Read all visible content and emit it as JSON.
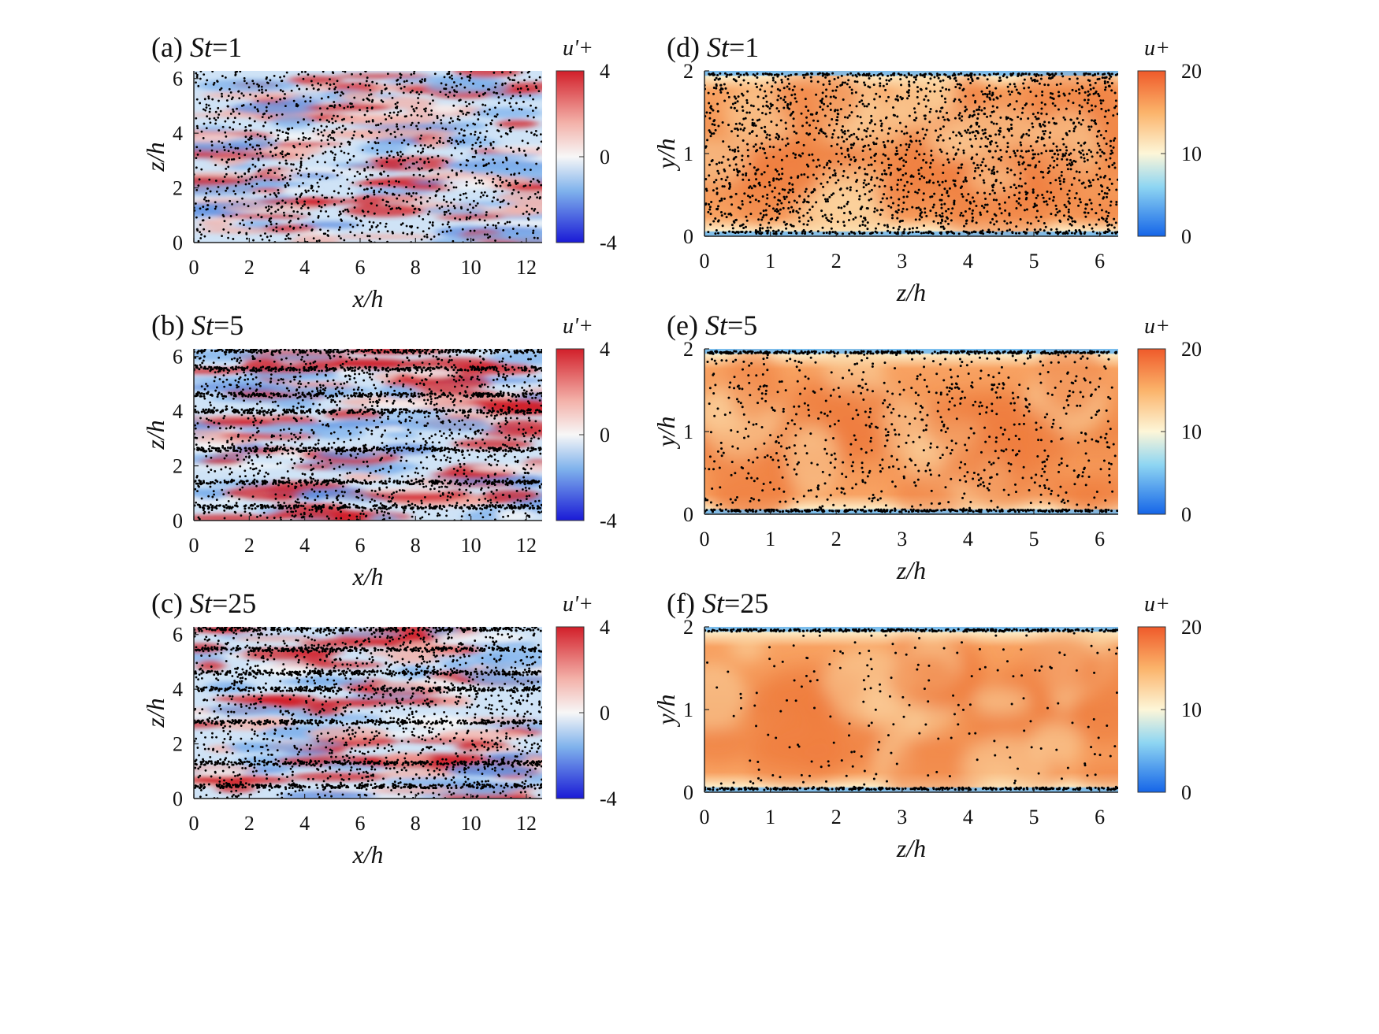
{
  "figure": {
    "description_colormap_left": "diverging blue-white-red",
    "description_colormap_right": "blue-white-orange"
  },
  "colors": {
    "neg": "#1a1ad6",
    "negmid": "#7fb2ec",
    "zero": "#f7f7f7",
    "posmid": "#f3b0a8",
    "pos": "#d21f2a",
    "ulow": "#1565e8",
    "umidlow": "#8fd6f2",
    "umid": "#fdf6d8",
    "umidhigh": "#fbb36a",
    "uhigh": "#ef5a2a",
    "particle": "#000000"
  },
  "chart_data": [
    {
      "id": "a",
      "type": "heatmap",
      "label_prefix": "(a) ",
      "label_var": "St",
      "label_value": "=1",
      "xlabel": "x/h",
      "ylabel": "z/h",
      "xlim": [
        0,
        12.57
      ],
      "ylim": [
        0,
        6.28
      ],
      "xticks": [
        "0",
        "2",
        "4",
        "6",
        "8",
        "10",
        "12"
      ],
      "yticks": [
        "0",
        "2",
        "4",
        "6"
      ],
      "colorbar": {
        "title": "u'+",
        "ticks": [
          "-4",
          "0",
          "4"
        ],
        "clim": [
          -4,
          4
        ]
      },
      "field": "streamwise velocity fluctuation, streaky",
      "particle_clustering": "weak",
      "streak_lines_z": []
    },
    {
      "id": "b",
      "type": "heatmap",
      "label_prefix": "(b) ",
      "label_var": "St",
      "label_value": "=5",
      "xlabel": "x/h",
      "ylabel": "z/h",
      "xlim": [
        0,
        12.57
      ],
      "ylim": [
        0,
        6.28
      ],
      "xticks": [
        "0",
        "2",
        "4",
        "6",
        "8",
        "10",
        "12"
      ],
      "yticks": [
        "0",
        "2",
        "4",
        "6"
      ],
      "colorbar": {
        "title": "u'+",
        "ticks": [
          "-4",
          "0",
          "4"
        ],
        "clim": [
          -4,
          4
        ]
      },
      "field": "streamwise velocity fluctuation, streaky",
      "particle_clustering": "moderate",
      "streak_lines_z": [
        0.5,
        1.4,
        2.6,
        4.0,
        4.6,
        5.55,
        6.2
      ]
    },
    {
      "id": "c",
      "type": "heatmap",
      "label_prefix": "(c) ",
      "label_var": "St",
      "label_value": "=25",
      "xlabel": "x/h",
      "ylabel": "z/h",
      "xlim": [
        0,
        12.57
      ],
      "ylim": [
        0,
        6.28
      ],
      "xticks": [
        "0",
        "2",
        "4",
        "6",
        "8",
        "10",
        "12"
      ],
      "yticks": [
        "0",
        "2",
        "4",
        "6"
      ],
      "colorbar": {
        "title": "u'+",
        "ticks": [
          "-4",
          "0",
          "4"
        ],
        "clim": [
          -4,
          4
        ]
      },
      "field": "streamwise velocity fluctuation, streaky",
      "particle_clustering": "strong",
      "streak_lines_z": [
        0.45,
        1.3,
        2.8,
        4.0,
        4.6,
        5.45,
        6.2
      ]
    },
    {
      "id": "d",
      "type": "heatmap",
      "label_prefix": "(d) ",
      "label_var": "St",
      "label_value": "=1",
      "xlabel": "z/h",
      "ylabel": "y/h",
      "xlim": [
        0,
        6.28
      ],
      "ylim": [
        0,
        2
      ],
      "xticks": [
        "0",
        "1",
        "2",
        "3",
        "4",
        "5",
        "6"
      ],
      "yticks": [
        "0",
        "1",
        "2"
      ],
      "colorbar": {
        "title": "u+",
        "ticks": [
          "0",
          "10",
          "20"
        ],
        "clim": [
          0,
          20
        ]
      },
      "field": "streamwise velocity, cross-section",
      "particle_density": "high"
    },
    {
      "id": "e",
      "type": "heatmap",
      "label_prefix": "(e) ",
      "label_var": "St",
      "label_value": "=5",
      "xlabel": "z/h",
      "ylabel": "y/h",
      "xlim": [
        0,
        6.28
      ],
      "ylim": [
        0,
        2
      ],
      "xticks": [
        "0",
        "1",
        "2",
        "3",
        "4",
        "5",
        "6"
      ],
      "yticks": [
        "0",
        "1",
        "2"
      ],
      "colorbar": {
        "title": "u+",
        "ticks": [
          "0",
          "10",
          "20"
        ],
        "clim": [
          0,
          20
        ]
      },
      "field": "streamwise velocity, cross-section",
      "particle_density": "medium"
    },
    {
      "id": "f",
      "type": "heatmap",
      "label_prefix": "(f) ",
      "label_var": "St",
      "label_value": "=25",
      "xlabel": "z/h",
      "ylabel": "y/h",
      "xlim": [
        0,
        6.28
      ],
      "ylim": [
        0,
        2
      ],
      "xticks": [
        "0",
        "1",
        "2",
        "3",
        "4",
        "5",
        "6"
      ],
      "yticks": [
        "0",
        "1",
        "2"
      ],
      "colorbar": {
        "title": "u+",
        "ticks": [
          "0",
          "10",
          "20"
        ],
        "clim": [
          0,
          20
        ]
      },
      "field": "streamwise velocity, cross-section",
      "particle_density": "low"
    }
  ]
}
